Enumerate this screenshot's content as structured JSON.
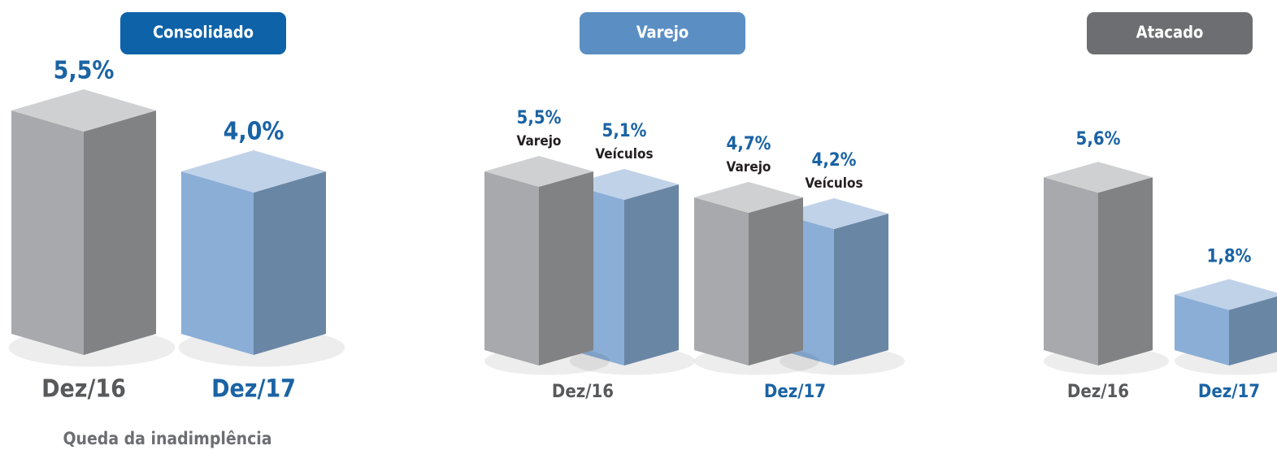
{
  "chart_data": [
    {
      "type": "bar3d",
      "title": "Consolidado",
      "title_color": "#0d62a8",
      "categories": [
        "Dez/16",
        "Dez/17"
      ],
      "values": [
        5.5,
        4.0
      ],
      "value_labels": [
        "5,5%",
        "4,0%"
      ],
      "colors": [
        "#a7a9ac",
        "#8aaed6"
      ]
    },
    {
      "type": "grouped_bar3d",
      "title": "Varejo",
      "title_color": "#5b8fc4",
      "categories": [
        "Dez/16",
        "Dez/17"
      ],
      "series": [
        {
          "name": "Varejo",
          "color": "#a7a9ac",
          "values": [
            5.5,
            4.7
          ],
          "value_labels": [
            "5,5%",
            "4,7%"
          ]
        },
        {
          "name": "Veículos",
          "color": "#8aaed6",
          "values": [
            5.1,
            4.2
          ],
          "value_labels": [
            "5,1%",
            "4,2%"
          ]
        }
      ]
    },
    {
      "type": "bar3d",
      "title": "Atacado",
      "title_color": "#6d6e71",
      "categories": [
        "Dez/16",
        "Dez/17"
      ],
      "values": [
        5.6,
        1.8
      ],
      "value_labels": [
        "5,6%",
        "1,8%"
      ],
      "colors": [
        "#a7a9ac",
        "#8aaed6"
      ]
    }
  ],
  "footnote": "Queda da inadimplência"
}
